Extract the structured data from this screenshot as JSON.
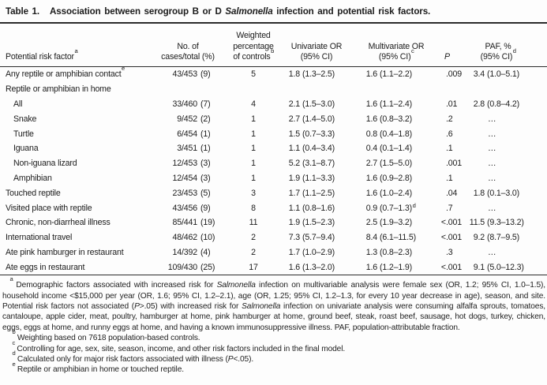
{
  "title": {
    "label": "Table 1.",
    "caption_segments": [
      {
        "t": "Association between serogroup B or D ",
        "i": false
      },
      {
        "t": "Salmonella",
        "i": true
      },
      {
        "t": " infection and potential risk factors.",
        "i": false
      }
    ]
  },
  "table": {
    "columns": [
      {
        "id": "risk_factor",
        "lines": [
          "Potential risk factor"
        ],
        "sup": "a",
        "italic": false
      },
      {
        "id": "cases",
        "lines": [
          "No. of",
          "cases/total (%)"
        ],
        "sup": "",
        "italic": false
      },
      {
        "id": "weighted_pct",
        "lines": [
          "Weighted",
          "percentage",
          "of controls"
        ],
        "sup": "b",
        "italic": false
      },
      {
        "id": "univariate",
        "lines": [
          "Univariate OR",
          "(95% CI)"
        ],
        "sup": "",
        "italic": false
      },
      {
        "id": "multivariate",
        "lines": [
          "Multivariate OR",
          "(95% CI)"
        ],
        "sup": "c",
        "italic": false
      },
      {
        "id": "p",
        "lines": [
          "P"
        ],
        "sup": "",
        "italic": true
      },
      {
        "id": "paf",
        "lines": [
          "PAF, %",
          "(95% CI)"
        ],
        "sup": "d",
        "italic": false
      }
    ],
    "rows": [
      {
        "label": "Any reptile or amphibian contact",
        "label_sup": "e",
        "indent": 0,
        "cases": "43/453 (9)",
        "weighted_pct": "5",
        "univariate": "1.8 (1.3–2.5)",
        "multivariate": "1.6 (1.1–2.2)",
        "multivariate_sup": "",
        "p": ".009",
        "paf": "3.4 (1.0–5.1)"
      },
      {
        "label": "Reptile or amphibian in home",
        "label_sup": "",
        "indent": 0,
        "cases": "",
        "weighted_pct": "",
        "univariate": "",
        "multivariate": "",
        "multivariate_sup": "",
        "p": "",
        "paf": ""
      },
      {
        "label": "All",
        "label_sup": "",
        "indent": 1,
        "cases": "33/460 (7)",
        "weighted_pct": "4",
        "univariate": "2.1 (1.5–3.0)",
        "multivariate": "1.6 (1.1–2.4)",
        "multivariate_sup": "",
        "p": ".01",
        "paf": "2.8 (0.8–4.2)"
      },
      {
        "label": "Snake",
        "label_sup": "",
        "indent": 1,
        "cases": "9/452 (2)",
        "weighted_pct": "1",
        "univariate": "2.7 (1.4–5.0)",
        "multivariate": "1.6 (0.8–3.2)",
        "multivariate_sup": "",
        "p": ".2",
        "paf": "…"
      },
      {
        "label": "Turtle",
        "label_sup": "",
        "indent": 1,
        "cases": "6/454 (1)",
        "weighted_pct": "1",
        "univariate": "1.5 (0.7–3.3)",
        "multivariate": "0.8 (0.4–1.8)",
        "multivariate_sup": "",
        "p": ".6",
        "paf": "…"
      },
      {
        "label": "Iguana",
        "label_sup": "",
        "indent": 1,
        "cases": "3/451 (1)",
        "weighted_pct": "1",
        "univariate": "1.1 (0.4–3.4)",
        "multivariate": "0.4 (0.1–1.4)",
        "multivariate_sup": "",
        "p": ".1",
        "paf": "…"
      },
      {
        "label": "Non-iguana lizard",
        "label_sup": "",
        "indent": 1,
        "cases": "12/453 (3)",
        "weighted_pct": "1",
        "univariate": "5.2 (3.1–8.7)",
        "multivariate": "2.7 (1.5–5.0)",
        "multivariate_sup": "",
        "p": ".001",
        "paf": "…"
      },
      {
        "label": "Amphibian",
        "label_sup": "",
        "indent": 1,
        "cases": "12/454 (3)",
        "weighted_pct": "1",
        "univariate": "1.9 (1.1–3.3)",
        "multivariate": "1.6 (0.9–2.8)",
        "multivariate_sup": "",
        "p": ".1",
        "paf": "…"
      },
      {
        "label": "Touched reptile",
        "label_sup": "",
        "indent": 0,
        "cases": "23/453 (5)",
        "weighted_pct": "3",
        "univariate": "1.7 (1.1–2.5)",
        "multivariate": "1.6 (1.0–2.4)",
        "multivariate_sup": "",
        "p": ".04",
        "paf": "1.8 (0.1–3.0)"
      },
      {
        "label": "Visited place with reptile",
        "label_sup": "",
        "indent": 0,
        "cases": "43/456 (9)",
        "weighted_pct": "8",
        "univariate": "1.1 (0.8–1.6)",
        "multivariate": "0.9 (0.7–1.3)",
        "multivariate_sup": "d",
        "p": ".7",
        "paf": "…"
      },
      {
        "label": "Chronic, non-diarrheal illness",
        "label_sup": "",
        "indent": 0,
        "cases": "85/441 (19)",
        "weighted_pct": "11",
        "univariate": "1.9 (1.5–2.3)",
        "multivariate": "2.5 (1.9–3.2)",
        "multivariate_sup": "",
        "p": "<.001",
        "paf": "11.5 (9.3–13.2)"
      },
      {
        "label": "International travel",
        "label_sup": "",
        "indent": 0,
        "cases": "48/462 (10)",
        "weighted_pct": "2",
        "univariate": "7.3 (5.7–9.4)",
        "multivariate": "8.4 (6.1–11.5)",
        "multivariate_sup": "",
        "p": "<.001",
        "paf": "9.2 (8.7–9.5)"
      },
      {
        "label": "Ate pink hamburger in restaurant",
        "label_sup": "",
        "indent": 0,
        "cases": "14/392 (4)",
        "weighted_pct": "2",
        "univariate": "1.7 (1.0–2.9)",
        "multivariate": "1.3 (0.8–2.3)",
        "multivariate_sup": "",
        "p": ".3",
        "paf": "…"
      },
      {
        "label": "Ate eggs in restaurant",
        "label_sup": "",
        "indent": 0,
        "cases": "109/430 (25)",
        "weighted_pct": "17",
        "univariate": "1.6 (1.3–2.0)",
        "multivariate": "1.6 (1.2–1.9)",
        "multivariate_sup": "",
        "p": "<.001",
        "paf": "9.1 (5.0–12.3)"
      }
    ]
  },
  "footnotes": [
    {
      "marker": "a",
      "segments": [
        {
          "t": "Demographic factors associated with increased risk for ",
          "i": false
        },
        {
          "t": "Salmonella",
          "i": true
        },
        {
          "t": " infection on multivariable analysis were female sex (OR, 1.2; 95% CI, 1.0–1.5), household income <$15,000 per year (OR, 1.6; 95% CI, 1.2–2.1), age (OR, 1.25; 95% CI, 1.2–1.3, for every 10 year decrease in age), season, and site. Potential risk factors not associated (",
          "i": false
        },
        {
          "t": "P",
          "i": true
        },
        {
          "t": ">.05) with increased risk for ",
          "i": false
        },
        {
          "t": "Salmonella",
          "i": true
        },
        {
          "t": " infection on univariate analysis were consuming alfalfa sprouts, tomatoes, cantaloupe, apple cider, meat, poultry, hamburger at home, pink hamburger at home, ground beef, steak, roast beef, sausage, hot dogs, turkey, chicken, eggs, eggs at home, and runny eggs at home, and having a known immunosuppressive illness. PAF, population-attributable fraction.",
          "i": false
        }
      ]
    },
    {
      "marker": "b",
      "segments": [
        {
          "t": "Weighting based on 7618 population-based controls.",
          "i": false
        }
      ]
    },
    {
      "marker": "c",
      "segments": [
        {
          "t": "Controlling for age, sex, site, season, income, and other risk factors included in the final model.",
          "i": false
        }
      ]
    },
    {
      "marker": "d",
      "segments": [
        {
          "t": "Calculated only for major risk factors associated with illness (",
          "i": false
        },
        {
          "t": "P",
          "i": true
        },
        {
          "t": "<.05).",
          "i": false
        }
      ]
    },
    {
      "marker": "e",
      "segments": [
        {
          "t": "Reptile or amphibian in home or touched reptile.",
          "i": false
        }
      ]
    }
  ],
  "colors": {
    "text": "#1b1b1b",
    "rule": "#2b2b2b",
    "background": "#fdfdfd"
  }
}
